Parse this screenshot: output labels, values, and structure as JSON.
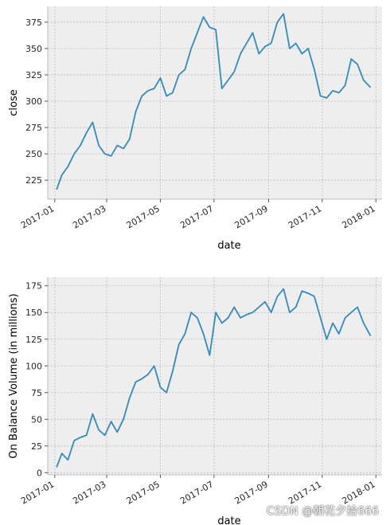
{
  "watermark": "CSDN @朝花夕拾666",
  "chart_data": [
    {
      "type": "line",
      "xlabel": "date",
      "ylabel": "close",
      "xticks": [
        "2017-01",
        "2017-03",
        "2017-05",
        "2017-07",
        "2017-09",
        "2017-11",
        "2018-01"
      ],
      "yticks": [
        225,
        250,
        275,
        300,
        325,
        350,
        375
      ],
      "xlim": [
        "2016-12-24",
        "2018-01-08"
      ],
      "ylim": [
        207,
        390
      ],
      "grid": true,
      "color": "#348abd",
      "series": [
        {
          "x": [
            "2017-01-03",
            "2017-01-09",
            "2017-01-16",
            "2017-01-23",
            "2017-01-30",
            "2017-02-06",
            "2017-02-13",
            "2017-02-20",
            "2017-02-27",
            "2017-03-06",
            "2017-03-13",
            "2017-03-20",
            "2017-03-27",
            "2017-04-03",
            "2017-04-10",
            "2017-04-17",
            "2017-04-24",
            "2017-05-01",
            "2017-05-08",
            "2017-05-15",
            "2017-05-22",
            "2017-05-29",
            "2017-06-05",
            "2017-06-12",
            "2017-06-19",
            "2017-06-26",
            "2017-07-03",
            "2017-07-10",
            "2017-07-17",
            "2017-07-24",
            "2017-07-31",
            "2017-08-07",
            "2017-08-14",
            "2017-08-21",
            "2017-08-28",
            "2017-09-04",
            "2017-09-11",
            "2017-09-18",
            "2017-09-25",
            "2017-10-02",
            "2017-10-09",
            "2017-10-16",
            "2017-10-23",
            "2017-10-30",
            "2017-11-06",
            "2017-11-13",
            "2017-11-20",
            "2017-11-27",
            "2017-12-04",
            "2017-12-11",
            "2017-12-18",
            "2017-12-26"
          ],
          "values": [
            216,
            230,
            238,
            250,
            258,
            270,
            280,
            258,
            250,
            248,
            258,
            255,
            264,
            290,
            305,
            310,
            312,
            322,
            305,
            308,
            325,
            330,
            350,
            365,
            380,
            370,
            368,
            312,
            320,
            328,
            345,
            355,
            365,
            345,
            352,
            355,
            375,
            383,
            350,
            355,
            345,
            350,
            330,
            305,
            303,
            310,
            308,
            315,
            340,
            335,
            320,
            313
          ]
        }
      ]
    },
    {
      "type": "line",
      "xlabel": "date",
      "ylabel": "On Balance Volume (in millions)",
      "xticks": [
        "2017-01",
        "2017-03",
        "2017-05",
        "2017-07",
        "2017-09",
        "2017-11",
        "2018-01"
      ],
      "yticks": [
        0,
        25,
        50,
        75,
        100,
        125,
        150,
        175
      ],
      "xlim": [
        "2016-12-24",
        "2018-01-08"
      ],
      "ylim": [
        -2,
        183
      ],
      "grid": true,
      "color": "#348abd",
      "series": [
        {
          "x": [
            "2017-01-03",
            "2017-01-09",
            "2017-01-16",
            "2017-01-23",
            "2017-01-30",
            "2017-02-06",
            "2017-02-13",
            "2017-02-20",
            "2017-02-27",
            "2017-03-06",
            "2017-03-13",
            "2017-03-20",
            "2017-03-27",
            "2017-04-03",
            "2017-04-10",
            "2017-04-17",
            "2017-04-24",
            "2017-05-01",
            "2017-05-08",
            "2017-05-15",
            "2017-05-22",
            "2017-05-29",
            "2017-06-05",
            "2017-06-12",
            "2017-06-19",
            "2017-06-26",
            "2017-07-03",
            "2017-07-10",
            "2017-07-17",
            "2017-07-24",
            "2017-07-31",
            "2017-08-07",
            "2017-08-14",
            "2017-08-21",
            "2017-08-28",
            "2017-09-04",
            "2017-09-11",
            "2017-09-18",
            "2017-09-25",
            "2017-10-02",
            "2017-10-09",
            "2017-10-16",
            "2017-10-23",
            "2017-10-30",
            "2017-11-06",
            "2017-11-13",
            "2017-11-20",
            "2017-11-27",
            "2017-12-04",
            "2017-12-11",
            "2017-12-18",
            "2017-12-26"
          ],
          "values": [
            5,
            18,
            12,
            30,
            33,
            35,
            55,
            40,
            35,
            48,
            38,
            50,
            70,
            85,
            88,
            92,
            100,
            80,
            75,
            95,
            120,
            130,
            150,
            145,
            130,
            110,
            150,
            140,
            145,
            155,
            145,
            148,
            150,
            155,
            160,
            150,
            165,
            172,
            150,
            155,
            170,
            168,
            165,
            145,
            125,
            140,
            130,
            145,
            150,
            155,
            140,
            128
          ]
        }
      ]
    }
  ]
}
